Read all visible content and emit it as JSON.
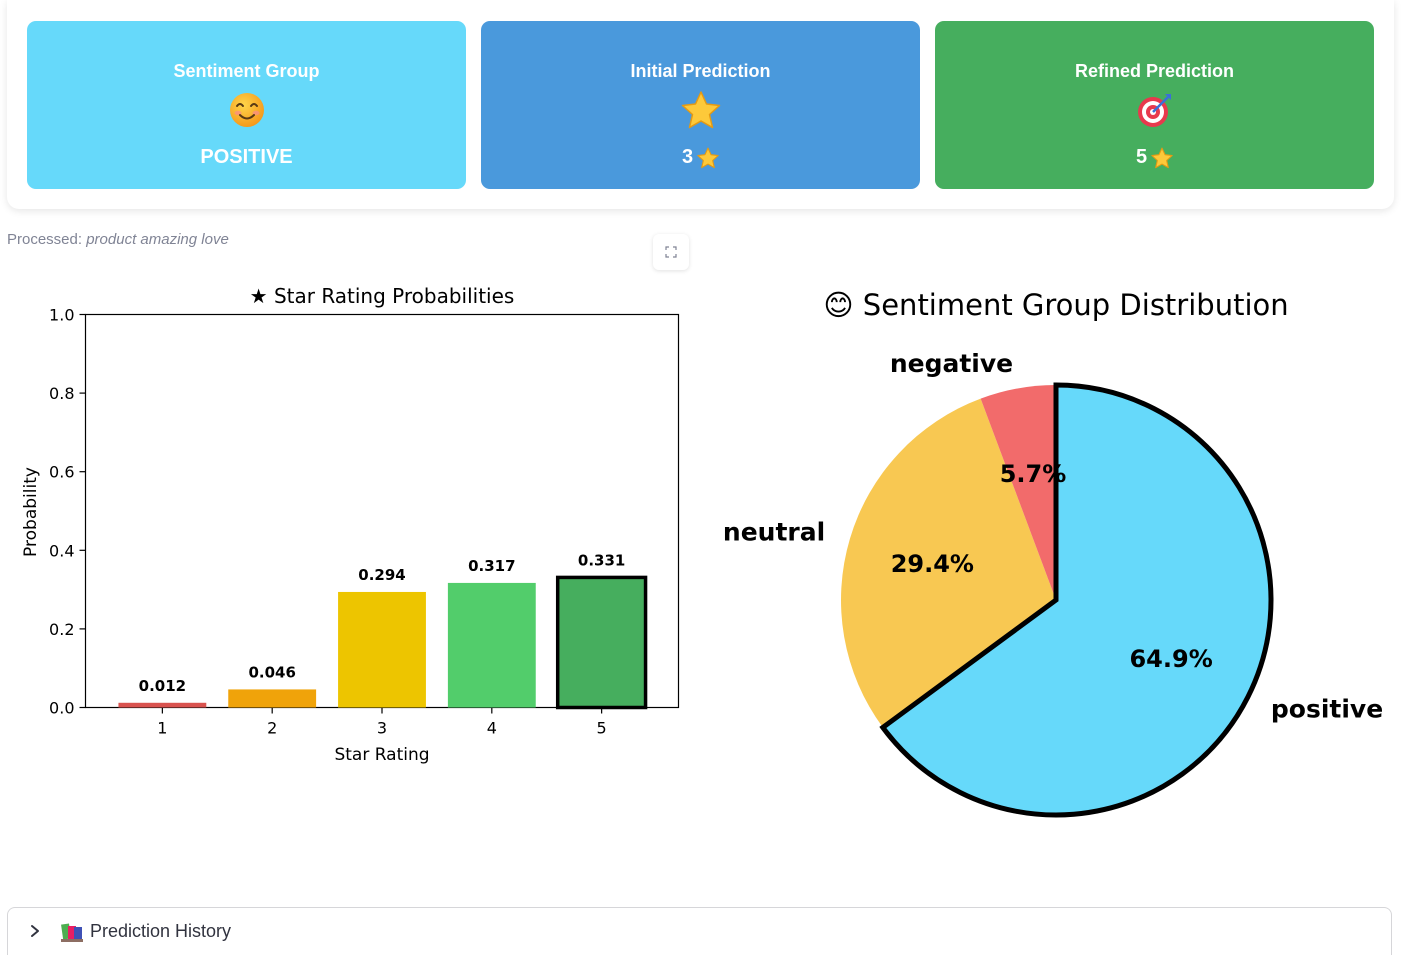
{
  "cards": [
    {
      "title": "Sentiment Group",
      "icon": "smiling-face-icon",
      "value": "POSITIVE",
      "color": "#66d9fa"
    },
    {
      "title": "Initial Prediction",
      "icon": "star-icon",
      "value": "3",
      "color": "#4a99dc"
    },
    {
      "title": "Refined Prediction",
      "icon": "target-icon",
      "value": "5",
      "color": "#46ae5e"
    }
  ],
  "processed": {
    "label": "Processed:",
    "text": "product amazing love"
  },
  "chart_data": [
    {
      "type": "bar",
      "title": "★ Star Rating Probabilities",
      "xlabel": "Star Rating",
      "ylabel": "Probability",
      "ylim": [
        0,
        1.0
      ],
      "yticks": [
        "0.0",
        "0.2",
        "0.4",
        "0.6",
        "0.8",
        "1.0"
      ],
      "categories": [
        "1",
        "2",
        "3",
        "4",
        "5"
      ],
      "values": [
        0.012,
        0.046,
        0.294,
        0.317,
        0.331
      ],
      "value_labels": [
        "0.012",
        "0.046",
        "0.294",
        "0.317",
        "0.331"
      ],
      "colors": [
        "#d9534f",
        "#f0a30a",
        "#edc500",
        "#52cd6b",
        "#46ae5e"
      ],
      "highlighted": "5",
      "grid": false
    },
    {
      "type": "pie",
      "title": "😊 Sentiment Group Distribution",
      "labels": [
        "positive",
        "neutral",
        "negative"
      ],
      "values": [
        64.9,
        29.4,
        5.7
      ],
      "value_labels": [
        "64.9%",
        "29.4%",
        "5.7%"
      ],
      "colors": [
        "#66d9fa",
        "#f8c852",
        "#f26b6b"
      ],
      "highlighted": "positive"
    }
  ],
  "history": {
    "label": "Prediction History",
    "icon": "books-icon"
  }
}
